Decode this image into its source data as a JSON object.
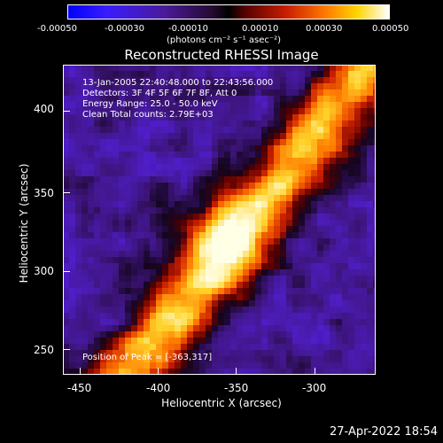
{
  "colorbar": {
    "ticks": [
      "-0.00050",
      "-0.00030",
      "-0.00010",
      "0.00010",
      "0.00030",
      "0.00050"
    ],
    "units": "(photons cm⁻² s⁻¹ asec⁻²)"
  },
  "title": "Reconstructed RHESSI Image",
  "info": {
    "time_range": "13-Jan-2005 22:40:48.000 to 22:43:56.000",
    "detectors": "Detectors: 3F 4F 5F 6F 7F 8F, Att 0",
    "energy": "Energy Range: 25.0 - 50.0 keV",
    "clean": "Clean     Total counts: 2.79E+03",
    "peak": "Position of Peak = [-363,317]"
  },
  "axes": {
    "xlabel": "Heliocentric X (arcsec)",
    "ylabel": "Heliocentric Y (arcsec)",
    "xticks": [
      "-450",
      "-400",
      "-350",
      "-300"
    ],
    "yticks": [
      "400",
      "350",
      "300",
      "250"
    ]
  },
  "timestamp": "27-Apr-2022 18:54",
  "colors": {
    "background": "#000000",
    "text": "#ffffff"
  }
}
